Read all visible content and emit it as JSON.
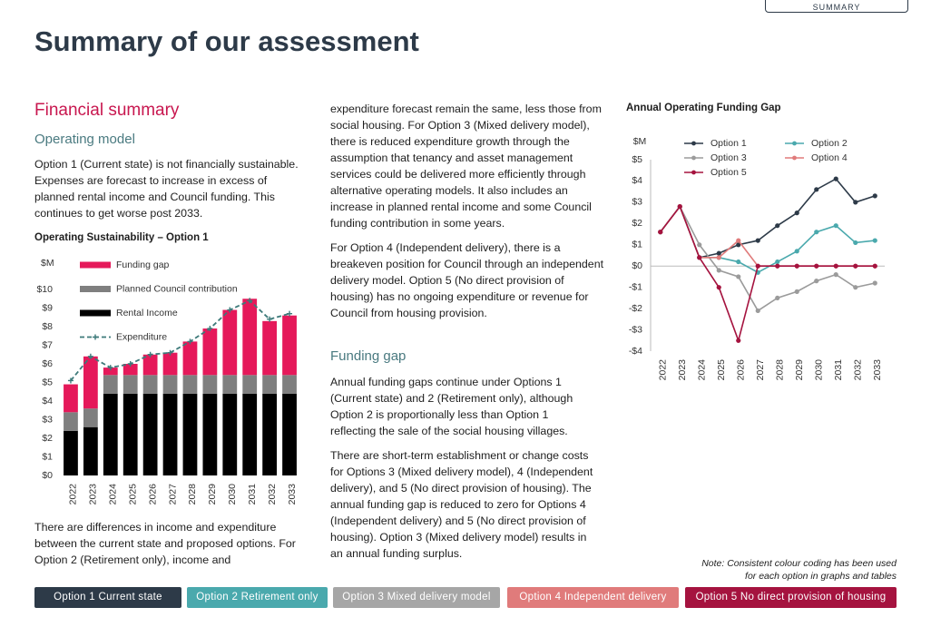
{
  "tab": "SUMMARY",
  "title": "Summary of our assessment",
  "heading": "Financial summary",
  "subheading_1": "Operating model",
  "left_paragraphs": [
    "Option 1 (Current state) is not financially sustainable. Expenses are forecast to increase in excess of planned rental income and Council funding. This continues to get worse post 2033.",
    "There are differences in income and expenditure between the current state and proposed options. For Option 2 (Retirement only), income and"
  ],
  "middle_paragraphs": [
    "expenditure forecast remain the same, less those from social housing. For Option 3 (Mixed delivery model), there is reduced expenditure growth through the assumption that tenancy and asset management services could be delivered more efficiently through alternative operating models. It also includes an increase in planned rental income and some Council funding contribution in some years.",
    "For Option 4 (Independent delivery), there is a breakeven position for Council through an independent delivery model. Option 5 (No direct provision of housing) has no ongoing expenditure or revenue for Council from housing provision."
  ],
  "subheading_2": "Funding gap",
  "middle_paragraphs_2": [
    "Annual funding gaps continue under Options 1 (Current state) and 2 (Retirement only), although Option 2 is proportionally less than Option 1 reflecting the sale of the social housing villages.",
    "There are short-term establishment or change costs for Options 3 (Mixed delivery model), 4 (Independent delivery), and 5 (No direct provision of housing). The annual funding gap is reduced to zero for Options 4 (Independent delivery) and 5 (No direct provision of housing). Option 3 (Mixed delivery model) results in an annual funding surplus."
  ],
  "note": [
    "Note: Consistent colour coding has been used",
    "for each option in graphs and tables"
  ],
  "option_chips": [
    {
      "label": "Option 1 Current state",
      "color": "#2d3a48"
    },
    {
      "label": "Option 2 Retirement only",
      "color": "#4aa9ad"
    },
    {
      "label": "Option 3 Mixed delivery model",
      "color": "#a6a6a6"
    },
    {
      "label": "Option 4 Independent delivery",
      "color": "#e07b7b"
    },
    {
      "label": "Option 5 No direct provision of housing",
      "color": "#a5133f"
    }
  ],
  "chart_data": [
    {
      "type": "bar",
      "stacked": true,
      "title": "Operating Sustainability – Option 1",
      "unit": "$M",
      "categories": [
        "2022",
        "2023",
        "2024",
        "2025",
        "2026",
        "2027",
        "2028",
        "2029",
        "2030",
        "2031",
        "2032",
        "2033"
      ],
      "series": [
        {
          "name": "Rental Income",
          "color": "#000000",
          "values": [
            2.4,
            2.6,
            4.4,
            4.4,
            4.4,
            4.4,
            4.4,
            4.4,
            4.4,
            4.4,
            4.4,
            4.4
          ]
        },
        {
          "name": "Planned Council contribution",
          "color": "#7f7f7f",
          "values": [
            1.0,
            1.0,
            1.0,
            1.0,
            1.0,
            1.0,
            1.0,
            1.0,
            1.0,
            1.0,
            1.0,
            1.0
          ]
        },
        {
          "name": "Funding gap",
          "color": "#e5195a",
          "values": [
            1.5,
            2.8,
            0.4,
            0.6,
            1.1,
            1.2,
            1.8,
            2.5,
            3.5,
            4.1,
            2.9,
            3.2
          ]
        },
        {
          "name": "Expenditure",
          "color": "#3d7a7a",
          "type": "line",
          "dashed": true,
          "values": [
            5.1,
            6.4,
            5.8,
            6.0,
            6.5,
            6.6,
            7.2,
            7.9,
            8.9,
            9.4,
            8.4,
            8.7
          ]
        }
      ],
      "ylim": [
        0,
        10
      ],
      "yticks": [
        {
          "value": 0,
          "label": "$0"
        },
        {
          "value": 1,
          "label": "$1"
        },
        {
          "value": 2,
          "label": "$2"
        },
        {
          "value": 3,
          "label": "$3"
        },
        {
          "value": 4,
          "label": "$4"
        },
        {
          "value": 5,
          "label": "$5"
        },
        {
          "value": 6,
          "label": "$6"
        },
        {
          "value": 7,
          "label": "$7"
        },
        {
          "value": 8,
          "label": "$8"
        },
        {
          "value": 9,
          "label": "$9"
        },
        {
          "value": 10,
          "label": "$10"
        }
      ]
    },
    {
      "type": "line",
      "title": "Annual Operating Funding Gap",
      "unit": "$M",
      "categories": [
        "2022",
        "2023",
        "2024",
        "2025",
        "2026",
        "2027",
        "2028",
        "2029",
        "2030",
        "2031",
        "2032",
        "2033"
      ],
      "series": [
        {
          "name": "Option 1",
          "color": "#2d3a48",
          "values": [
            1.6,
            2.8,
            0.4,
            0.6,
            1.0,
            1.2,
            1.9,
            2.5,
            3.6,
            4.1,
            3.0,
            3.3
          ]
        },
        {
          "name": "Option 2",
          "color": "#4aa9ad",
          "values": [
            1.6,
            2.8,
            0.4,
            0.4,
            0.2,
            -0.3,
            0.2,
            0.7,
            1.6,
            1.9,
            1.1,
            1.2
          ]
        },
        {
          "name": "Option 3",
          "color": "#9b9b9b",
          "values": [
            1.6,
            2.8,
            1.0,
            -0.2,
            -0.5,
            -2.1,
            -1.5,
            -1.2,
            -0.7,
            -0.4,
            -1.0,
            -0.8
          ]
        },
        {
          "name": "Option 4",
          "color": "#e07b7b",
          "values": [
            1.6,
            2.8,
            0.4,
            0.4,
            1.2,
            0,
            0,
            0,
            0,
            0,
            0,
            0
          ]
        },
        {
          "name": "Option 5",
          "color": "#a5133f",
          "values": [
            1.6,
            2.8,
            0.4,
            -1.0,
            -3.5,
            0,
            0,
            0,
            0,
            0,
            0,
            0
          ]
        }
      ],
      "ylim": [
        -4,
        5
      ],
      "yticks": [
        {
          "value": 5,
          "label": "$5"
        },
        {
          "value": 4,
          "label": "$4"
        },
        {
          "value": 3,
          "label": "$3"
        },
        {
          "value": 2,
          "label": "$2"
        },
        {
          "value": 1,
          "label": "$1"
        },
        {
          "value": 0,
          "label": "$0"
        },
        {
          "value": -1,
          "label": "-$1"
        },
        {
          "value": -2,
          "label": "-$2"
        },
        {
          "value": -3,
          "label": "-$3"
        },
        {
          "value": -4,
          "label": "-$4"
        }
      ]
    }
  ]
}
